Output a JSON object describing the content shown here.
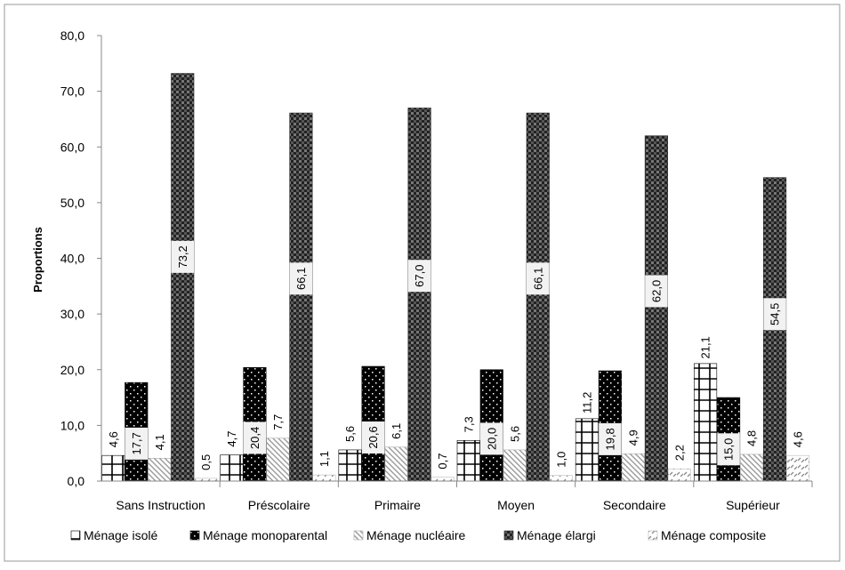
{
  "chart_data": {
    "type": "bar",
    "title": "",
    "xlabel": "",
    "ylabel": "Proportions",
    "ylim": [
      0,
      80
    ],
    "yticks": [
      "0,0",
      "10,0",
      "20,0",
      "30,0",
      "40,0",
      "50,0",
      "60,0",
      "70,0",
      "80,0"
    ],
    "grid": false,
    "legend_position": "bottom",
    "categories": [
      "Sans Instruction",
      "Préscolaire",
      "Primaire",
      "Moyen",
      "Secondaire",
      "Supérieur"
    ],
    "series": [
      {
        "name": "Ménage isolé",
        "values": [
          4.6,
          4.7,
          5.6,
          7.3,
          11.2,
          21.1
        ],
        "labels": [
          "4,6",
          "4,7",
          "5,6",
          "7,3",
          "11,2",
          "21,1"
        ],
        "pattern": "grid-cross"
      },
      {
        "name": "Ménage monoparental",
        "values": [
          17.7,
          20.4,
          20.6,
          20.0,
          19.8,
          15.0
        ],
        "labels": [
          "17,7",
          "20,4",
          "20,6",
          "20,0",
          "19,8",
          "15,0"
        ],
        "pattern": "black-dots"
      },
      {
        "name": "Ménage nucléaire",
        "values": [
          4.1,
          7.7,
          6.1,
          5.6,
          4.9,
          4.8
        ],
        "labels": [
          "4,1",
          "7,7",
          "6,1",
          "5,6",
          "4,9",
          "4,8"
        ],
        "pattern": "diagonal-hatch"
      },
      {
        "name": "Ménage élargi",
        "values": [
          73.2,
          66.1,
          67.0,
          66.1,
          62.0,
          54.5
        ],
        "labels": [
          "73,2",
          "66,1",
          "67,0",
          "66,1",
          "62,0",
          "54,5"
        ],
        "pattern": "checker"
      },
      {
        "name": "Ménage composite",
        "values": [
          0.5,
          1.1,
          0.7,
          1.0,
          2.2,
          4.6
        ],
        "labels": [
          "0,5",
          "1,1",
          "0,7",
          "1,0",
          "2,2",
          "4,6"
        ],
        "pattern": "light-dash"
      }
    ]
  }
}
